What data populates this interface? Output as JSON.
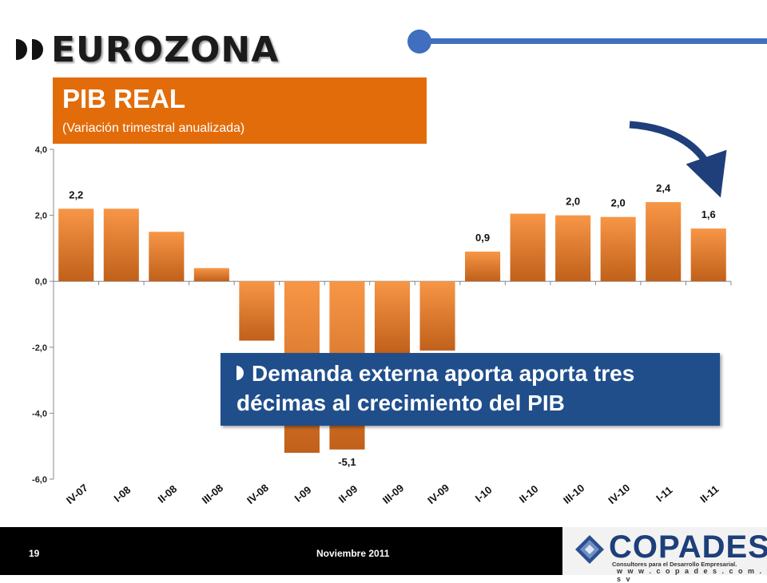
{
  "header": {
    "brand": "EUROZONA"
  },
  "title_box": {
    "title": "PIB REAL",
    "subtitle": "(Variación trimestral anualizada)"
  },
  "callout": {
    "line1": "Demanda externa aporta aporta tres",
    "line2": "décimas al crecimiento del PIB"
  },
  "footer": {
    "page_number": "19",
    "date": "Noviembre 2011",
    "logo_name": "COPADES",
    "logo_tagline": "Consultores para el Desarrollo Empresarial.",
    "logo_url": "w w w . c o p a d e s . c o m . s v"
  },
  "colors": {
    "bar_top": "#f79646",
    "bar_bottom": "#c0601a",
    "accent_orange": "#e36c0a",
    "accent_blue": "#1f4e8b",
    "arrow": "#1f3f7a"
  },
  "chart_data": {
    "type": "bar",
    "categories": [
      "IV-07",
      "I-08",
      "II-08",
      "III-08",
      "IV-08",
      "I-09",
      "II-09",
      "III-09",
      "IV-09",
      "I-10",
      "II-10",
      "III-10",
      "IV-10",
      "I-11",
      "II-11"
    ],
    "values": [
      2.2,
      2.2,
      1.5,
      0.4,
      -1.8,
      -5.2,
      -5.1,
      -2.2,
      -2.1,
      0.9,
      2.05,
      2.0,
      1.95,
      2.4,
      1.6
    ],
    "data_labels": [
      "2,2",
      "",
      "",
      "",
      "",
      "",
      "-5,1",
      "",
      "",
      "0,9",
      "",
      "2,0",
      "2,0",
      "2,4",
      "1,6"
    ],
    "ylim": [
      -6,
      4
    ],
    "yticks": [
      4,
      2,
      0,
      -2,
      -4,
      -6
    ],
    "ytick_labels": [
      "4,0",
      "2,0",
      "0,0",
      "-2,0",
      "-4,0",
      "-6,0"
    ],
    "grid": false,
    "legend": "none"
  }
}
